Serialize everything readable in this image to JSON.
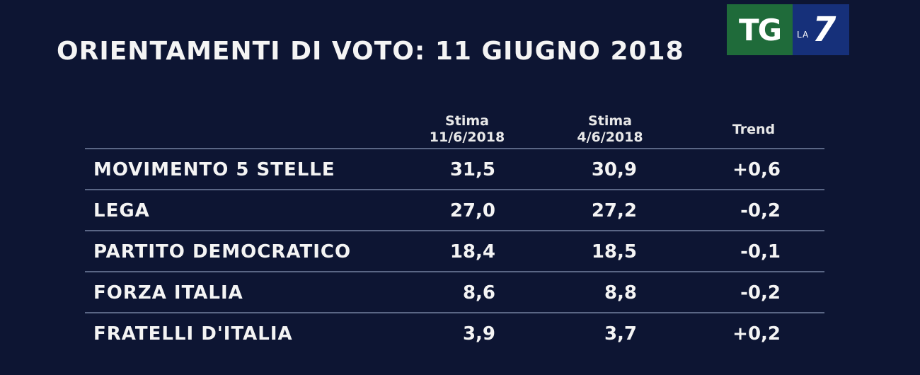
{
  "title": "ORIENTAMENTI DI VOTO: 11 GIUGNO 2018",
  "logo": {
    "left_text": "TG",
    "la_text": "LA",
    "seven_text": "7",
    "colors": {
      "green": "#1f6b3a",
      "blue": "#16307a"
    }
  },
  "columns": {
    "col1_line1": "Stima",
    "col1_line2": "11/6/2018",
    "col2_line1": "Stima",
    "col2_line2": "4/6/2018",
    "col3": "Trend"
  },
  "rows": [
    {
      "party": "MOVIMENTO 5 STELLE",
      "v1": "31,5",
      "v2": "30,9",
      "trend": "+0,6"
    },
    {
      "party": "LEGA",
      "v1": "27,0",
      "v2": "27,2",
      "trend": "-0,2"
    },
    {
      "party": "PARTITO DEMOCRATICO",
      "v1": "18,4",
      "v2": "18,5",
      "trend": "-0,1"
    },
    {
      "party": "FORZA ITALIA",
      "v1": "8,6",
      "v2": "8,8",
      "trend": "-0,2"
    },
    {
      "party": "FRATELLI D'ITALIA",
      "v1": "3,9",
      "v2": "3,7",
      "trend": "+0,2"
    }
  ],
  "colors": {
    "background": "#0d1533",
    "text": "#f4f4f4",
    "divider": "#5a6685"
  }
}
